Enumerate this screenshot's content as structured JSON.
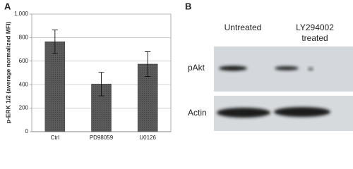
{
  "panel_labels": [
    "A",
    "B"
  ],
  "chart_data": {
    "type": "bar",
    "y_label": "p-ERK 1/2 (average normalized MFI)",
    "categories": [
      "Ctrl",
      "PD98059",
      "U0126"
    ],
    "values": [
      765,
      405,
      575
    ],
    "errors": [
      100,
      100,
      105
    ],
    "color": "#555555",
    "ylim": [
      0,
      1000
    ],
    "yticks": [
      0,
      200,
      400,
      600,
      800,
      {
        "value": 1000,
        "label": "1,000"
      }
    ],
    "grid": true
  },
  "blot": {
    "columns": [
      "Untreated",
      "LY294002\ntreated"
    ],
    "rows": [
      "pAkt",
      "Actin"
    ]
  }
}
